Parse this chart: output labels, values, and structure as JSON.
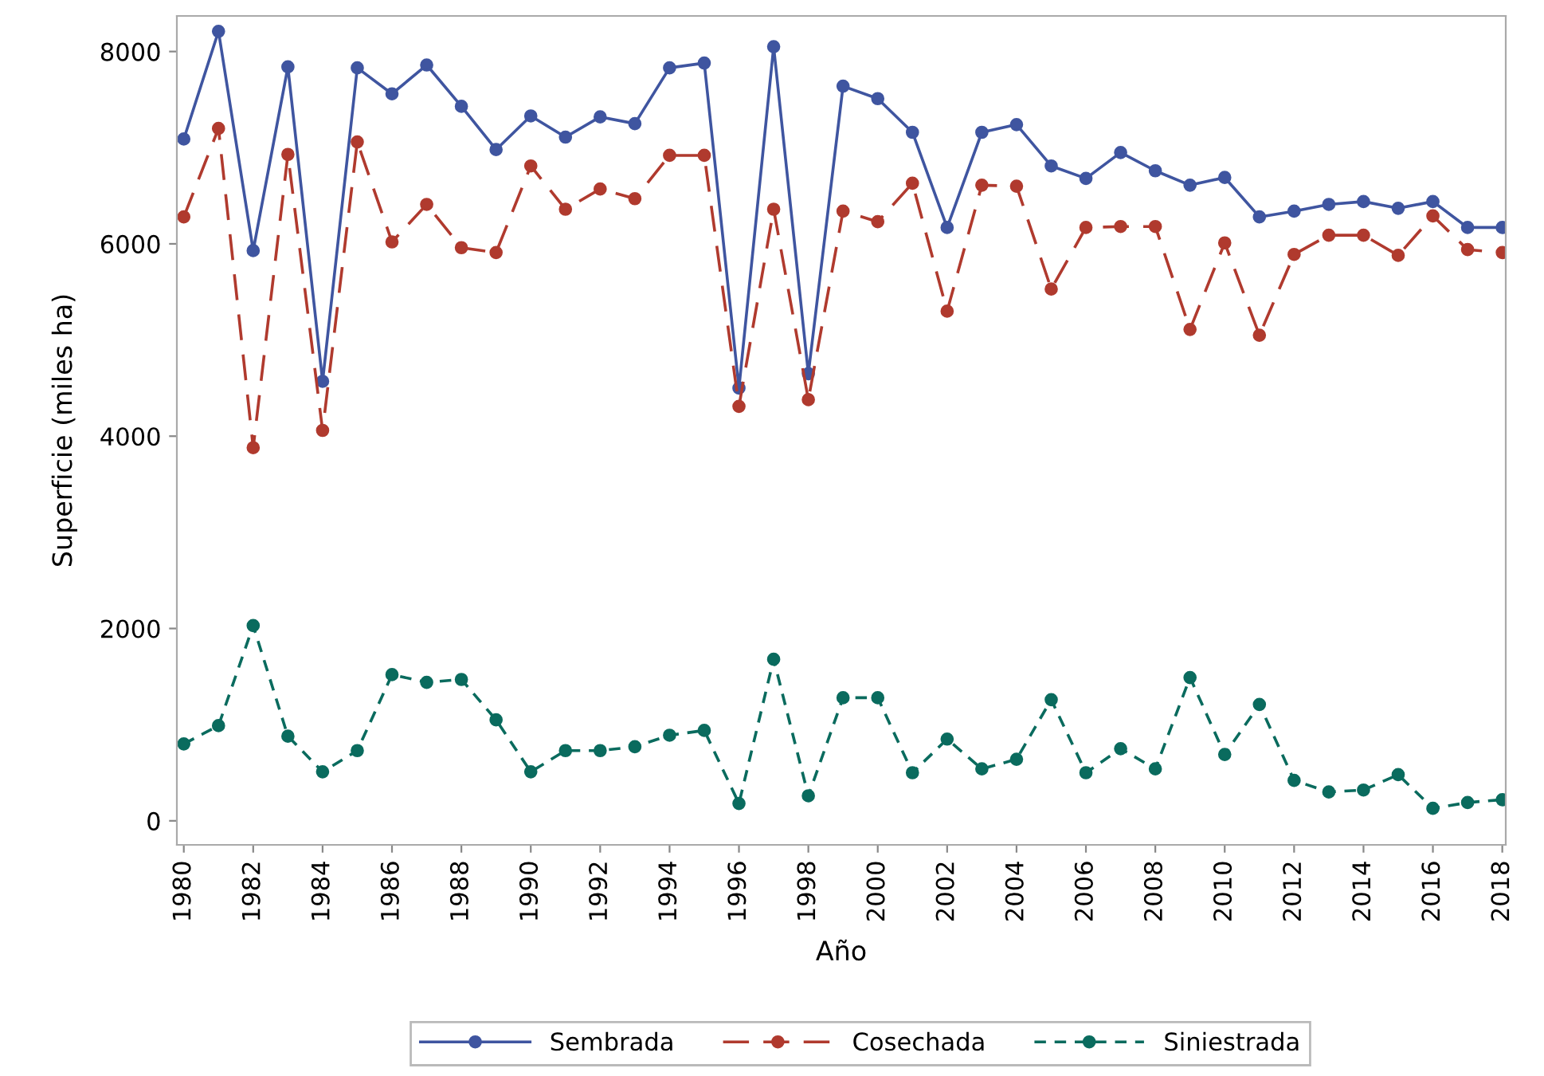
{
  "chart_data": {
    "type": "line",
    "xlabel": "Año",
    "ylabel": "Superficie (miles ha)",
    "x": [
      1980,
      1981,
      1982,
      1983,
      1984,
      1985,
      1986,
      1987,
      1988,
      1989,
      1990,
      1991,
      1992,
      1993,
      1994,
      1995,
      1996,
      1997,
      1998,
      1999,
      2000,
      2001,
      2002,
      2003,
      2004,
      2005,
      2006,
      2007,
      2008,
      2009,
      2010,
      2011,
      2012,
      2013,
      2014,
      2015,
      2016,
      2017,
      2018
    ],
    "xlim": [
      1979.8,
      2018.1
    ],
    "xticks": [
      1980,
      1982,
      1984,
      1986,
      1988,
      1990,
      1992,
      1994,
      1996,
      1998,
      2000,
      2002,
      2004,
      2006,
      2008,
      2010,
      2012,
      2014,
      2016,
      2018
    ],
    "ylim": [
      -250,
      8370
    ],
    "yticks": [
      0,
      2000,
      4000,
      6000,
      8000
    ],
    "grid": false,
    "legend": "bottom",
    "marker": "circle",
    "series": [
      {
        "name": "Sembrada",
        "color": "#3f55a0",
        "line_style": "solid",
        "values": [
          7090,
          8210,
          5930,
          7840,
          4570,
          7830,
          7560,
          7860,
          7430,
          6980,
          7330,
          7110,
          7320,
          7250,
          7830,
          7880,
          4500,
          8050,
          4650,
          7640,
          7510,
          7160,
          6170,
          7160,
          7240,
          6810,
          6680,
          6950,
          6760,
          6610,
          6690,
          6280,
          6340,
          6410,
          6440,
          6370,
          6440,
          6170,
          6170
        ]
      },
      {
        "name": "Cosechada",
        "color": "#b03a2e",
        "line_style": "dashed",
        "values": [
          6280,
          7200,
          3880,
          6930,
          4060,
          7060,
          6020,
          6410,
          5960,
          5910,
          6810,
          6360,
          6570,
          6470,
          6920,
          6920,
          4310,
          6360,
          4380,
          6340,
          6230,
          6630,
          5300,
          6610,
          6600,
          5530,
          6170,
          6180,
          6180,
          5110,
          6010,
          5050,
          5890,
          6090,
          6090,
          5880,
          6290,
          5940,
          5910
        ]
      },
      {
        "name": "Siniestrada",
        "color": "#0a6b5e",
        "line_style": "dotted",
        "values": [
          800,
          990,
          2030,
          880,
          510,
          730,
          1520,
          1440,
          1470,
          1050,
          510,
          730,
          730,
          770,
          890,
          940,
          180,
          1680,
          260,
          1280,
          1280,
          500,
          850,
          540,
          640,
          1260,
          500,
          750,
          540,
          1490,
          690,
          1210,
          420,
          300,
          320,
          480,
          130,
          190,
          220
        ]
      }
    ]
  }
}
